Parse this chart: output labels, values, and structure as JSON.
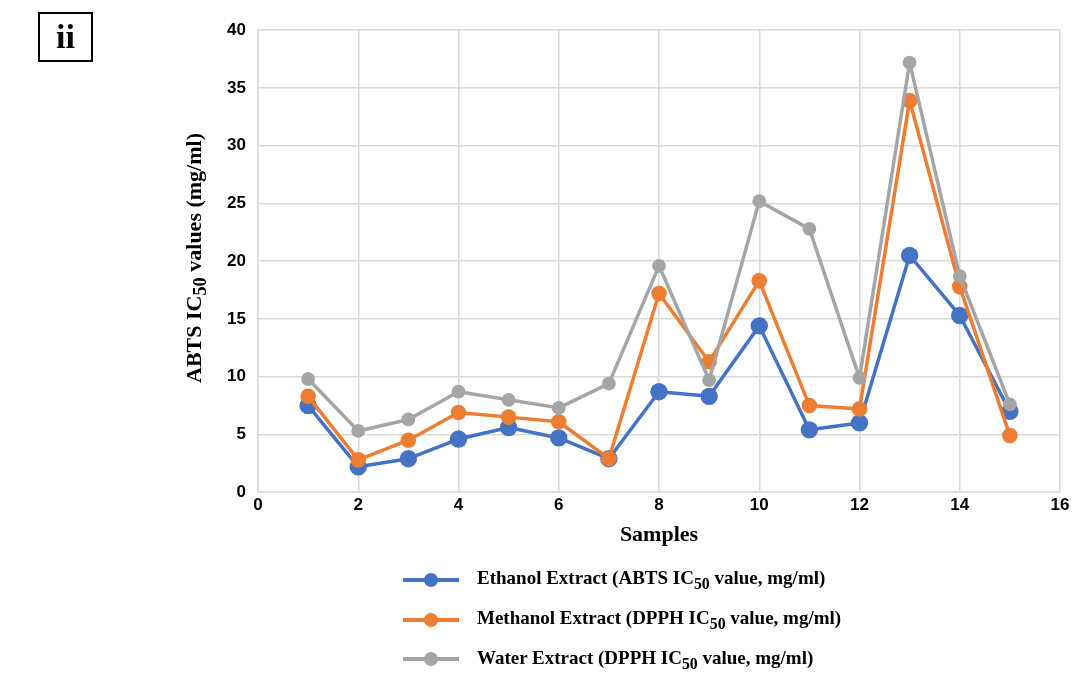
{
  "chart_data": {
    "type": "line",
    "xlabel": "Samples",
    "ylabel": "ABTS IC$_{50}$  values (mg/ml)",
    "annotations": [
      "ii"
    ],
    "x": [
      1,
      2,
      3,
      4,
      5,
      6,
      7,
      8,
      9,
      10,
      11,
      12,
      13,
      14,
      15
    ],
    "xlim": [
      0,
      16
    ],
    "xticks": [
      0,
      2,
      4,
      6,
      8,
      10,
      12,
      14,
      16
    ],
    "ylim": [
      0,
      40
    ],
    "yticks": [
      0,
      5,
      10,
      15,
      20,
      25,
      30,
      35,
      40
    ],
    "grid": true,
    "legend": "bottom",
    "marker": "circle",
    "line_style": "solid",
    "series": [
      {
        "name": "Ethanol Extract (ABTS IC$_{50}$ value, mg/ml)",
        "color": "#4472c4",
        "values": [
          7.5,
          2.2,
          2.9,
          4.6,
          5.6,
          4.7,
          2.9,
          8.7,
          8.3,
          14.4,
          5.4,
          6.0,
          20.5,
          15.3,
          7.0
        ]
      },
      {
        "name": "Methanol Extract (DPPH IC$_{50}$ value, mg/ml)",
        "color": "#ed7d31",
        "values": [
          8.3,
          2.8,
          4.5,
          6.9,
          6.5,
          6.1,
          2.9,
          17.2,
          11.3,
          18.3,
          7.5,
          7.2,
          33.9,
          17.8,
          4.9
        ]
      },
      {
        "name": "Water Extract (DPPH IC$_{50}$ value, mg/ml)",
        "color": "#a5a5a5",
        "values": [
          9.8,
          5.3,
          6.3,
          8.7,
          8.0,
          7.3,
          9.4,
          19.6,
          9.7,
          25.2,
          22.8,
          9.9,
          37.2,
          18.7,
          7.6
        ]
      }
    ]
  }
}
